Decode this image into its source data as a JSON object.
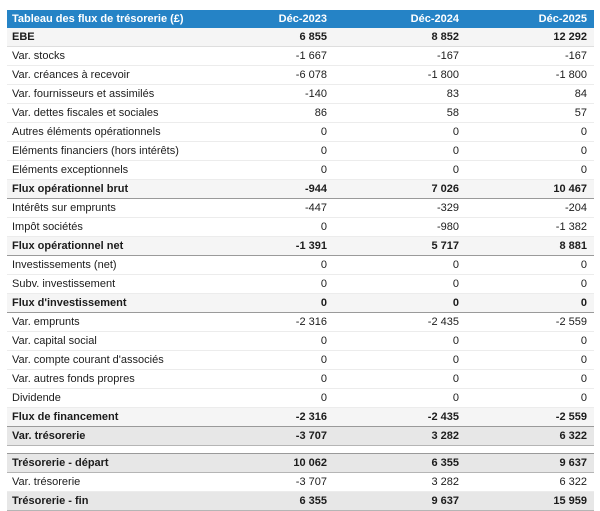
{
  "table": {
    "title": "Tableau des flux de trésorerie (£)",
    "columns": [
      "Déc-2023",
      "Déc-2024",
      "Déc-2025"
    ],
    "colors": {
      "header_bg": "#2583c6",
      "header_fg": "#ffffff",
      "subtotal_row_bg": "#f5f5f5",
      "cash_row_bg": "#e7e7e7",
      "dark_rule": "#9a9a9a"
    },
    "rows": [
      {
        "label": "EBE",
        "values": [
          "6 855",
          "8 852",
          "12 292"
        ],
        "style": "ebe"
      },
      {
        "label": "Var. stocks",
        "values": [
          "-1 667",
          "-167",
          "-167"
        ],
        "style": "normal"
      },
      {
        "label": "Var. créances à recevoir",
        "values": [
          "-6 078",
          "-1 800",
          "-1 800"
        ],
        "style": "normal"
      },
      {
        "label": "Var. fournisseurs et assimilés",
        "values": [
          "-140",
          "83",
          "84"
        ],
        "style": "normal"
      },
      {
        "label": "Var. dettes fiscales et sociales",
        "values": [
          "86",
          "58",
          "57"
        ],
        "style": "normal"
      },
      {
        "label": "Autres éléments opérationnels",
        "values": [
          "0",
          "0",
          "0"
        ],
        "style": "normal"
      },
      {
        "label": "Eléments financiers (hors intérêts)",
        "values": [
          "0",
          "0",
          "0"
        ],
        "style": "normal"
      },
      {
        "label": "Eléments exceptionnels",
        "values": [
          "0",
          "0",
          "0"
        ],
        "style": "normal"
      },
      {
        "label": "Flux opérationnel brut",
        "values": [
          "-944",
          "7 026",
          "10 467"
        ],
        "style": "total"
      },
      {
        "label": "Intérêts sur emprunts",
        "values": [
          "-447",
          "-329",
          "-204"
        ],
        "style": "normal"
      },
      {
        "label": "Impôt sociétés",
        "values": [
          "0",
          "-980",
          "-1 382"
        ],
        "style": "normal"
      },
      {
        "label": "Flux opérationnel net",
        "values": [
          "-1 391",
          "5 717",
          "8 881"
        ],
        "style": "total"
      },
      {
        "label": "Investissements (net)",
        "values": [
          "0",
          "0",
          "0"
        ],
        "style": "normal"
      },
      {
        "label": "Subv. investissement",
        "values": [
          "0",
          "0",
          "0"
        ],
        "style": "normal"
      },
      {
        "label": "Flux d'investissement",
        "values": [
          "0",
          "0",
          "0"
        ],
        "style": "total"
      },
      {
        "label": "Var. emprunts",
        "values": [
          "-2 316",
          "-2 435",
          "-2 559"
        ],
        "style": "normal"
      },
      {
        "label": "Var. capital social",
        "values": [
          "0",
          "0",
          "0"
        ],
        "style": "normal"
      },
      {
        "label": "Var. compte courant d'associés",
        "values": [
          "0",
          "0",
          "0"
        ],
        "style": "normal"
      },
      {
        "label": "Var. autres fonds propres",
        "values": [
          "0",
          "0",
          "0"
        ],
        "style": "normal"
      },
      {
        "label": "Dividende",
        "values": [
          "0",
          "0",
          "0"
        ],
        "style": "normal"
      },
      {
        "label": "Flux de financement",
        "values": [
          "-2 316",
          "-2 435",
          "-2 559"
        ],
        "style": "total"
      },
      {
        "label": "Var. trésorerie",
        "values": [
          "-3 707",
          "3 282",
          "6 322"
        ],
        "style": "cash"
      },
      {
        "label": "",
        "values": [],
        "style": "spacer"
      },
      {
        "label": "Trésorerie - départ",
        "values": [
          "10 062",
          "6 355",
          "9 637"
        ],
        "style": "cash"
      },
      {
        "label": "Var. trésorerie",
        "values": [
          "-3 707",
          "3 282",
          "6 322"
        ],
        "style": "normal"
      },
      {
        "label": "Trésorerie - fin",
        "values": [
          "6 355",
          "9 637",
          "15 959"
        ],
        "style": "cash"
      }
    ]
  }
}
